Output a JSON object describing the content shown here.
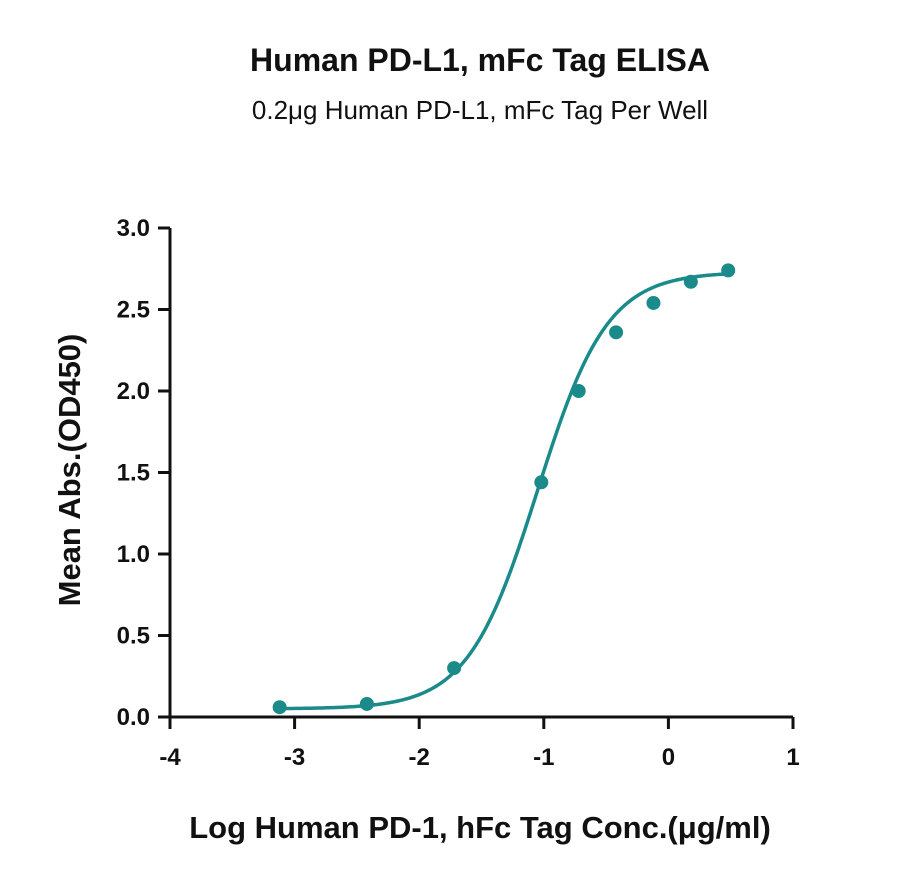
{
  "chart_data": {
    "type": "scatter",
    "title": "Human PD-L1, mFc Tag ELISA",
    "subtitle": "0.2μg Human PD-L1, mFc Tag Per Well",
    "xlabel": "Log Human PD-1, hFc Tag Conc.(μg/ml)",
    "ylabel": "Mean Abs.(OD450)",
    "xlim": [
      -4,
      1
    ],
    "ylim": [
      0,
      3.0
    ],
    "xticks": [
      "-4",
      "-3",
      "-2",
      "-1",
      "0",
      "1"
    ],
    "yticks": [
      "0.0",
      "0.5",
      "1.0",
      "1.5",
      "2.0",
      "2.5",
      "3.0"
    ],
    "grid": false,
    "color": "#1a8a8a",
    "series": [
      {
        "points": [
          {
            "x": -3.12,
            "y": 0.06
          },
          {
            "x": -2.42,
            "y": 0.08
          },
          {
            "x": -1.72,
            "y": 0.3
          },
          {
            "x": -1.02,
            "y": 1.44
          },
          {
            "x": -0.72,
            "y": 2.0
          },
          {
            "x": -0.42,
            "y": 2.36
          },
          {
            "x": -0.12,
            "y": 2.54
          },
          {
            "x": 0.18,
            "y": 2.67
          },
          {
            "x": 0.48,
            "y": 2.74
          }
        ],
        "fit": {
          "bottom": 0.05,
          "top": 2.73,
          "logEC50": -1.05,
          "hill": 1.55
        }
      }
    ]
  }
}
